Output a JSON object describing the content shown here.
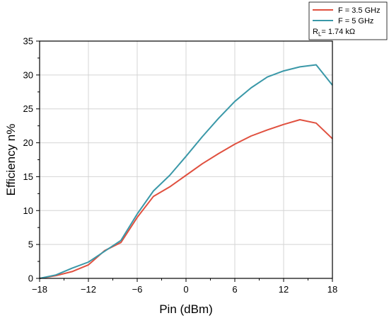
{
  "chart_data": {
    "type": "line",
    "title": "",
    "xlabel": "Pin (dBm)",
    "ylabel": "Efficiency n%",
    "xlim": [
      -18,
      18
    ],
    "ylim": [
      0,
      35
    ],
    "xticks": [
      -18,
      -12,
      -6,
      0,
      6,
      12,
      18
    ],
    "yticks": [
      0,
      5,
      10,
      15,
      20,
      25,
      30,
      35
    ],
    "xtick_labels": [
      "−18",
      "−12",
      "−6",
      "0",
      "6",
      "12",
      "18"
    ],
    "ytick_labels": [
      "0",
      "5",
      "10",
      "15",
      "20",
      "25",
      "30",
      "35"
    ],
    "grid": true,
    "legend_position": "top-right outside",
    "legend_note": {
      "main": "R",
      "sub": "L",
      "rest": "= 1.74 kΩ"
    },
    "series": [
      {
        "name": "F = 3.5 GHz",
        "color": "#e0503f",
        "x": [
          -18,
          -16,
          -14,
          -12,
          -10,
          -8,
          -6,
          -4,
          -2,
          0,
          2,
          4,
          6,
          8,
          10,
          12,
          14,
          16,
          18
        ],
        "y": [
          0,
          0.4,
          1.0,
          2.0,
          4.1,
          5.3,
          9.0,
          12.1,
          13.5,
          15.2,
          16.9,
          18.4,
          19.8,
          21.0,
          21.9,
          22.7,
          23.4,
          22.9,
          20.6
        ]
      },
      {
        "name": "F = 5 GHz",
        "color": "#3a98a8",
        "x": [
          -18,
          -16,
          -14,
          -12,
          -10,
          -8,
          -6,
          -4,
          -2,
          0,
          2,
          4,
          6,
          8,
          10,
          12,
          14,
          16,
          18
        ],
        "y": [
          0,
          0.5,
          1.5,
          2.4,
          4.0,
          5.6,
          9.5,
          12.9,
          15.2,
          18.0,
          20.9,
          23.6,
          26.1,
          28.1,
          29.7,
          30.6,
          31.2,
          31.5,
          28.5
        ]
      }
    ]
  }
}
